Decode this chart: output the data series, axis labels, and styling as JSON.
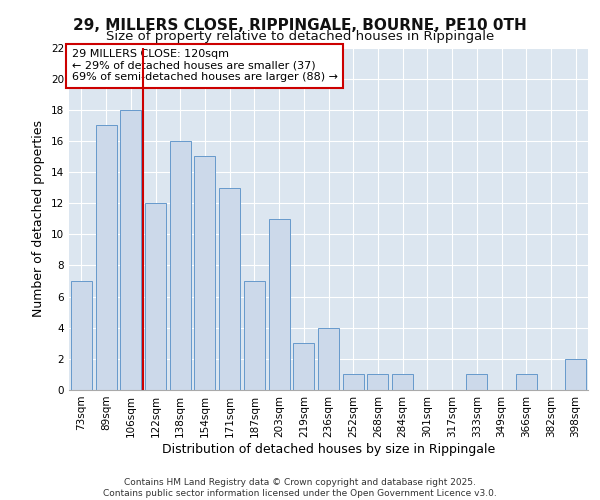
{
  "title1": "29, MILLERS CLOSE, RIPPINGALE, BOURNE, PE10 0TH",
  "title2": "Size of property relative to detached houses in Rippingale",
  "xlabel": "Distribution of detached houses by size in Rippingale",
  "ylabel": "Number of detached properties",
  "categories": [
    "73sqm",
    "89sqm",
    "106sqm",
    "122sqm",
    "138sqm",
    "154sqm",
    "171sqm",
    "187sqm",
    "203sqm",
    "219sqm",
    "236sqm",
    "252sqm",
    "268sqm",
    "284sqm",
    "301sqm",
    "317sqm",
    "333sqm",
    "349sqm",
    "366sqm",
    "382sqm",
    "398sqm"
  ],
  "values": [
    7,
    17,
    18,
    12,
    16,
    15,
    13,
    7,
    11,
    3,
    4,
    1,
    1,
    1,
    0,
    0,
    1,
    0,
    1,
    0,
    2
  ],
  "bar_color": "#ccd9ea",
  "bar_edgecolor": "#6699cc",
  "vline_index": 3,
  "vline_color": "#cc0000",
  "annotation_text": "29 MILLERS CLOSE: 120sqm\n← 29% of detached houses are smaller (37)\n69% of semi-detached houses are larger (88) →",
  "annotation_box_color": "#ffffff",
  "annotation_box_edgecolor": "#cc0000",
  "ylim": [
    0,
    22
  ],
  "yticks": [
    0,
    2,
    4,
    6,
    8,
    10,
    12,
    14,
    16,
    18,
    20,
    22
  ],
  "background_color": "#dce6f0",
  "footer": "Contains HM Land Registry data © Crown copyright and database right 2025.\nContains public sector information licensed under the Open Government Licence v3.0.",
  "title_fontsize": 11,
  "subtitle_fontsize": 9.5,
  "tick_fontsize": 7.5,
  "label_fontsize": 9,
  "annotation_fontsize": 8,
  "footer_fontsize": 6.5
}
